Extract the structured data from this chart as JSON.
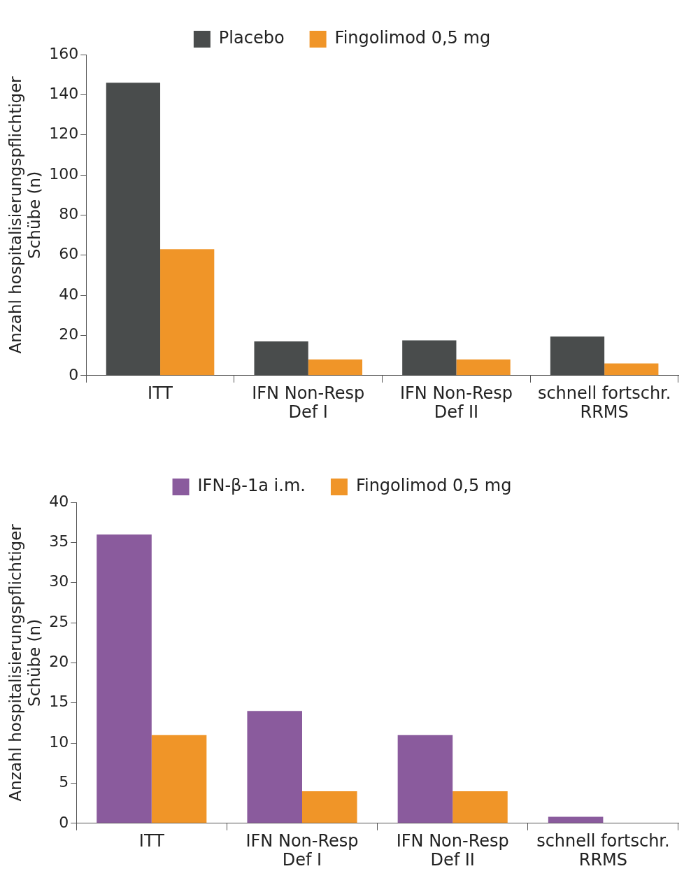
{
  "chart_data": [
    {
      "type": "bar",
      "ylabel": "Anzahl hospitalisierungspflichtiger\nSchübe (n)",
      "categories": [
        "ITT",
        "IFN Non-Resp\nDef I",
        "IFN Non-Resp\nDef II",
        "schnell fortschr.\nRRMS"
      ],
      "series": [
        {
          "name": "Placebo",
          "color": "#494c4c",
          "values": [
            146,
            17,
            17.5,
            19.5
          ]
        },
        {
          "name": "Fingolimod 0,5 mg",
          "color": "#f09528",
          "values": [
            63,
            8,
            8,
            6
          ]
        }
      ],
      "ylim": [
        0,
        160
      ],
      "yticks": [
        0,
        20,
        40,
        60,
        80,
        100,
        120,
        140,
        160
      ],
      "grid": false,
      "legend": "top"
    },
    {
      "type": "bar",
      "ylabel": "Anzahl hospitalisierungspflichtiger\nSchübe (n)",
      "categories": [
        "ITT",
        "IFN Non-Resp\nDef I",
        "IFN Non-Resp\nDef II",
        "schnell fortschr.\nRRMS"
      ],
      "series": [
        {
          "name": "IFN-β-1a i.m.",
          "color": "#8a5b9d",
          "values": [
            36,
            14,
            11,
            0.8
          ]
        },
        {
          "name": "Fingolimod 0,5 mg",
          "color": "#f09528",
          "values": [
            11,
            4,
            4,
            0
          ]
        }
      ],
      "ylim": [
        0,
        40
      ],
      "yticks": [
        0,
        5,
        10,
        15,
        20,
        25,
        30,
        35,
        40
      ],
      "grid": false,
      "legend": "top"
    }
  ]
}
